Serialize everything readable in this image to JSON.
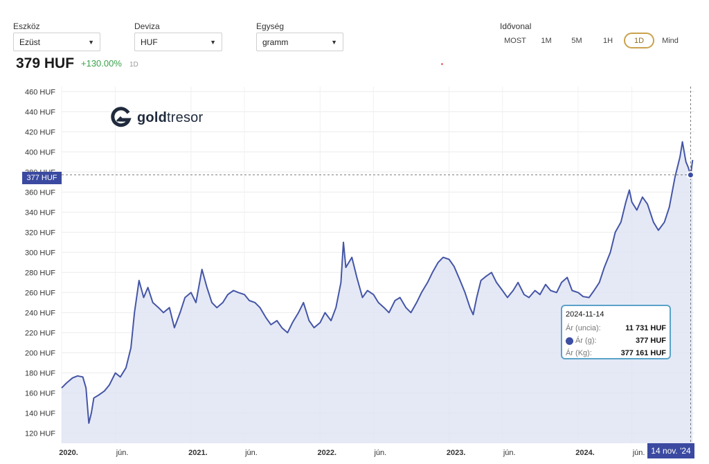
{
  "controls": {
    "asset": {
      "label": "Eszköz",
      "value": "Ezüst"
    },
    "currency": {
      "label": "Deviza",
      "value": "HUF"
    },
    "unit": {
      "label": "Egység",
      "value": "gramm"
    }
  },
  "summary": {
    "price": "379 HUF",
    "change": "+130.00%",
    "period": "1D"
  },
  "timeline": {
    "label": "Idővonal",
    "buttons": [
      "MOST",
      "1M",
      "5M",
      "1H",
      "1D",
      "Mind"
    ],
    "active": "1D"
  },
  "logo": {
    "brand_bold": "gold",
    "brand_rest": "tresor"
  },
  "colors": {
    "line": "#4455a6",
    "fill": "#dfe3f4",
    "accent_active": "#c9a24d",
    "tooltip_border": "#5aa2c9",
    "change_positive": "#3aa14a"
  },
  "crosshair": {
    "value_label": "377 HUF",
    "date_label": "14 nov. '24"
  },
  "tooltip": {
    "date": "2024-11-14",
    "rows": [
      {
        "key": "Ár (uncia):",
        "value": "11 731 HUF"
      },
      {
        "key": "Ár (g):",
        "value": "377 HUF"
      },
      {
        "key": "Ár (Kg):",
        "value": "377 161 HUF"
      }
    ]
  },
  "chart_data": {
    "type": "area",
    "title": "",
    "xlabel": "",
    "ylabel": "",
    "y_unit": "HUF",
    "ylim": [
      110,
      465
    ],
    "yticks": [
      120,
      140,
      160,
      180,
      200,
      220,
      240,
      260,
      280,
      300,
      320,
      340,
      360,
      380,
      400,
      420,
      440,
      460
    ],
    "xlim": [
      "2020-01-01",
      "2024-11-25"
    ],
    "xticks": [
      {
        "label": "2020.",
        "date": "2020-01-01"
      },
      {
        "label": "jún.",
        "date": "2020-06-01"
      },
      {
        "label": "2021.",
        "date": "2021-01-01"
      },
      {
        "label": "jún.",
        "date": "2021-06-01"
      },
      {
        "label": "2022.",
        "date": "2022-01-01"
      },
      {
        "label": "jún.",
        "date": "2022-06-01"
      },
      {
        "label": "2023.",
        "date": "2023-01-01"
      },
      {
        "label": "jún.",
        "date": "2023-06-01"
      },
      {
        "label": "2024.",
        "date": "2024-01-01"
      },
      {
        "label": "jún.",
        "date": "2024-06-01"
      }
    ],
    "grid": true,
    "legend": "none",
    "highlight": {
      "date": "2024-11-14",
      "value": 377
    },
    "series": [
      {
        "points": [
          [
            "2020-01-01",
            165
          ],
          [
            "2020-01-15",
            170
          ],
          [
            "2020-02-01",
            175
          ],
          [
            "2020-02-15",
            177
          ],
          [
            "2020-03-01",
            176
          ],
          [
            "2020-03-10",
            165
          ],
          [
            "2020-03-18",
            130
          ],
          [
            "2020-03-25",
            140
          ],
          [
            "2020-04-01",
            155
          ],
          [
            "2020-04-15",
            158
          ],
          [
            "2020-05-01",
            162
          ],
          [
            "2020-05-15",
            168
          ],
          [
            "2020-06-01",
            180
          ],
          [
            "2020-06-15",
            176
          ],
          [
            "2020-07-01",
            185
          ],
          [
            "2020-07-15",
            205
          ],
          [
            "2020-07-25",
            240
          ],
          [
            "2020-08-07",
            272
          ],
          [
            "2020-08-20",
            255
          ],
          [
            "2020-09-01",
            265
          ],
          [
            "2020-09-15",
            250
          ],
          [
            "2020-10-01",
            245
          ],
          [
            "2020-10-15",
            240
          ],
          [
            "2020-11-01",
            245
          ],
          [
            "2020-11-15",
            225
          ],
          [
            "2020-12-01",
            240
          ],
          [
            "2020-12-15",
            255
          ],
          [
            "2021-01-01",
            260
          ],
          [
            "2021-01-15",
            250
          ],
          [
            "2021-02-01",
            283
          ],
          [
            "2021-02-15",
            265
          ],
          [
            "2021-03-01",
            250
          ],
          [
            "2021-03-15",
            245
          ],
          [
            "2021-04-01",
            250
          ],
          [
            "2021-04-15",
            258
          ],
          [
            "2021-05-01",
            262
          ],
          [
            "2021-05-15",
            260
          ],
          [
            "2021-06-01",
            258
          ],
          [
            "2021-06-15",
            252
          ],
          [
            "2021-07-01",
            250
          ],
          [
            "2021-07-15",
            245
          ],
          [
            "2021-08-01",
            235
          ],
          [
            "2021-08-15",
            228
          ],
          [
            "2021-09-01",
            232
          ],
          [
            "2021-09-15",
            225
          ],
          [
            "2021-10-01",
            220
          ],
          [
            "2021-10-15",
            230
          ],
          [
            "2021-11-01",
            240
          ],
          [
            "2021-11-15",
            250
          ],
          [
            "2021-12-01",
            232
          ],
          [
            "2021-12-15",
            225
          ],
          [
            "2022-01-01",
            230
          ],
          [
            "2022-01-15",
            240
          ],
          [
            "2022-02-01",
            232
          ],
          [
            "2022-02-15",
            245
          ],
          [
            "2022-03-01",
            270
          ],
          [
            "2022-03-08",
            310
          ],
          [
            "2022-03-15",
            285
          ],
          [
            "2022-04-01",
            295
          ],
          [
            "2022-04-15",
            275
          ],
          [
            "2022-05-01",
            255
          ],
          [
            "2022-05-15",
            262
          ],
          [
            "2022-06-01",
            258
          ],
          [
            "2022-06-15",
            250
          ],
          [
            "2022-07-01",
            245
          ],
          [
            "2022-07-15",
            240
          ],
          [
            "2022-08-01",
            252
          ],
          [
            "2022-08-15",
            255
          ],
          [
            "2022-09-01",
            245
          ],
          [
            "2022-09-15",
            240
          ],
          [
            "2022-10-01",
            250
          ],
          [
            "2022-10-15",
            260
          ],
          [
            "2022-11-01",
            270
          ],
          [
            "2022-11-15",
            280
          ],
          [
            "2022-12-01",
            290
          ],
          [
            "2022-12-15",
            295
          ],
          [
            "2023-01-01",
            293
          ],
          [
            "2023-01-15",
            286
          ],
          [
            "2023-02-01",
            272
          ],
          [
            "2023-02-15",
            260
          ],
          [
            "2023-03-01",
            245
          ],
          [
            "2023-03-10",
            238
          ],
          [
            "2023-03-20",
            255
          ],
          [
            "2023-04-01",
            272
          ],
          [
            "2023-04-15",
            276
          ],
          [
            "2023-05-01",
            280
          ],
          [
            "2023-05-15",
            270
          ],
          [
            "2023-06-01",
            262
          ],
          [
            "2023-06-15",
            255
          ],
          [
            "2023-07-01",
            262
          ],
          [
            "2023-07-15",
            270
          ],
          [
            "2023-08-01",
            258
          ],
          [
            "2023-08-15",
            255
          ],
          [
            "2023-09-01",
            262
          ],
          [
            "2023-09-15",
            258
          ],
          [
            "2023-10-01",
            268
          ],
          [
            "2023-10-15",
            262
          ],
          [
            "2023-11-01",
            260
          ],
          [
            "2023-11-15",
            270
          ],
          [
            "2023-12-01",
            275
          ],
          [
            "2023-12-15",
            262
          ],
          [
            "2024-01-01",
            260
          ],
          [
            "2024-01-15",
            256
          ],
          [
            "2024-02-01",
            255
          ],
          [
            "2024-02-15",
            262
          ],
          [
            "2024-03-01",
            270
          ],
          [
            "2024-03-15",
            285
          ],
          [
            "2024-04-01",
            300
          ],
          [
            "2024-04-15",
            320
          ],
          [
            "2024-05-01",
            330
          ],
          [
            "2024-05-15",
            350
          ],
          [
            "2024-05-25",
            362
          ],
          [
            "2024-06-01",
            350
          ],
          [
            "2024-06-15",
            342
          ],
          [
            "2024-07-01",
            355
          ],
          [
            "2024-07-15",
            348
          ],
          [
            "2024-08-01",
            330
          ],
          [
            "2024-08-15",
            322
          ],
          [
            "2024-09-01",
            330
          ],
          [
            "2024-09-15",
            345
          ],
          [
            "2024-10-01",
            375
          ],
          [
            "2024-10-15",
            395
          ],
          [
            "2024-10-22",
            410
          ],
          [
            "2024-11-01",
            390
          ],
          [
            "2024-11-07",
            385
          ],
          [
            "2024-11-14",
            377
          ],
          [
            "2024-11-20",
            392
          ]
        ]
      }
    ]
  }
}
